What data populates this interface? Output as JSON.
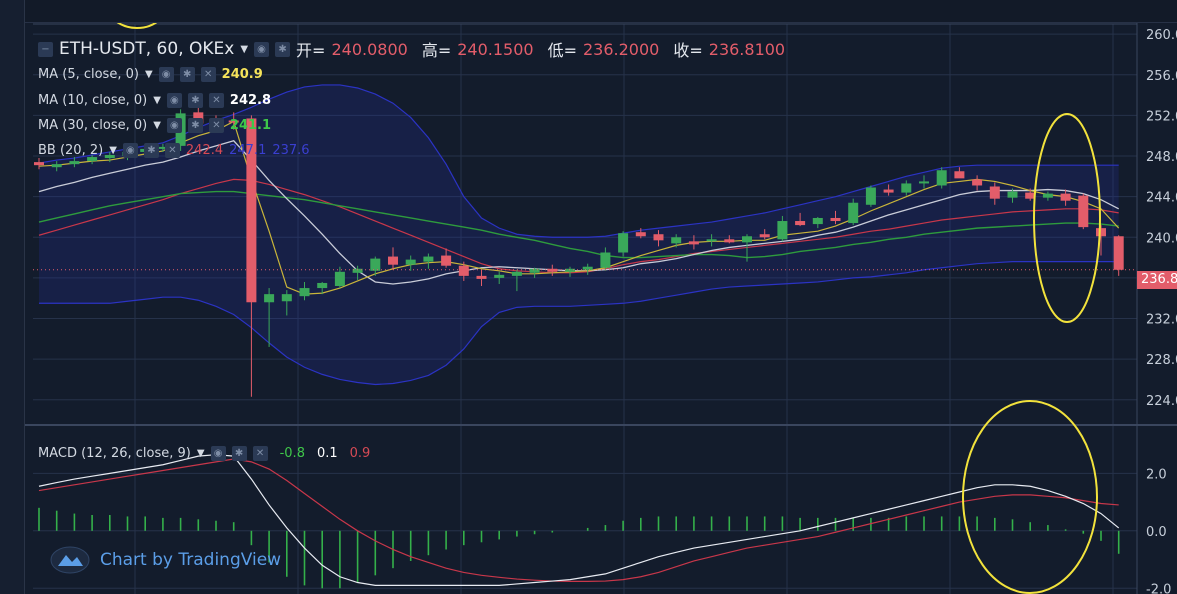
{
  "header": {
    "symbol": "ETH-USDT, 60, OKEx",
    "open_label": "开=",
    "open": "240.0800",
    "high_label": "高=",
    "high": "240.1500",
    "low_label": "低=",
    "low": "236.2000",
    "close_label": "收=",
    "close": "236.8100"
  },
  "indicators": {
    "ma5": {
      "label": "MA (5, close, 0)",
      "value": "240.9",
      "color": "#f5e35a"
    },
    "ma10": {
      "label": "MA (10, close, 0)",
      "value": "242.8",
      "color": "#ffffff"
    },
    "ma30": {
      "label": "MA (30, close, 0)",
      "value": "241.1",
      "color": "#3fc74a"
    },
    "bb": {
      "label": "BB (20, 2)",
      "values": [
        "242.4",
        "247.1",
        "237.6"
      ],
      "colors": [
        "#d64a55",
        "#3a3fd0",
        "#3a3fd0"
      ]
    },
    "macd": {
      "label": "MACD (12, 26, close, 9)",
      "values": [
        "-0.8",
        "0.1",
        "0.9"
      ],
      "colors": [
        "#3fc74a",
        "#ffffff",
        "#d64a55"
      ]
    }
  },
  "branding": {
    "text": "Chart by TradingView"
  },
  "colors": {
    "up": "#3aa85a",
    "down": "#e35d6a",
    "background": "#131c2c",
    "grid": "#26324a",
    "annotation": "#f2e23c"
  },
  "chart_data": [
    {
      "type": "candlestick",
      "title": "",
      "y_ticks": [
        260,
        256,
        252,
        248,
        244,
        240,
        236,
        232,
        228,
        224
      ],
      "ylim": [
        222.5,
        261
      ],
      "last_price": 236.8,
      "candles": [
        {
          "o": 247.4,
          "h": 247.8,
          "l": 246.7,
          "c": 247.1
        },
        {
          "o": 246.9,
          "h": 247.5,
          "l": 246.5,
          "c": 247.2
        },
        {
          "o": 247.2,
          "h": 247.9,
          "l": 246.9,
          "c": 247.5
        },
        {
          "o": 247.5,
          "h": 248.1,
          "l": 247.2,
          "c": 247.9
        },
        {
          "o": 247.8,
          "h": 248.4,
          "l": 247.4,
          "c": 248.1
        },
        {
          "o": 248.0,
          "h": 248.6,
          "l": 247.6,
          "c": 248.4
        },
        {
          "o": 248.4,
          "h": 249.0,
          "l": 248.1,
          "c": 248.7
        },
        {
          "o": 248.7,
          "h": 249.2,
          "l": 248.4,
          "c": 248.9
        },
        {
          "o": 249.0,
          "h": 252.6,
          "l": 248.5,
          "c": 252.2
        },
        {
          "o": 252.3,
          "h": 252.8,
          "l": 250.8,
          "c": 251.2
        },
        {
          "o": 251.4,
          "h": 252.0,
          "l": 250.6,
          "c": 251.0
        },
        {
          "o": 251.5,
          "h": 252.3,
          "l": 250.6,
          "c": 251.3
        },
        {
          "o": 251.7,
          "h": 252.0,
          "l": 224.3,
          "c": 233.6
        },
        {
          "o": 233.6,
          "h": 235.0,
          "l": 229.2,
          "c": 234.4
        },
        {
          "o": 233.7,
          "h": 234.8,
          "l": 232.3,
          "c": 234.4
        },
        {
          "o": 234.2,
          "h": 235.6,
          "l": 233.8,
          "c": 235.0
        },
        {
          "o": 235.0,
          "h": 235.6,
          "l": 234.4,
          "c": 235.5
        },
        {
          "o": 235.2,
          "h": 237.1,
          "l": 235.0,
          "c": 236.6
        },
        {
          "o": 236.5,
          "h": 237.2,
          "l": 235.8,
          "c": 236.9
        },
        {
          "o": 236.7,
          "h": 238.1,
          "l": 236.2,
          "c": 237.9
        },
        {
          "o": 238.1,
          "h": 239.0,
          "l": 236.8,
          "c": 237.3
        },
        {
          "o": 237.3,
          "h": 238.2,
          "l": 236.7,
          "c": 237.8
        },
        {
          "o": 237.6,
          "h": 238.4,
          "l": 236.9,
          "c": 238.1
        },
        {
          "o": 238.2,
          "h": 238.9,
          "l": 237.0,
          "c": 237.2
        },
        {
          "o": 237.2,
          "h": 237.6,
          "l": 235.7,
          "c": 236.2
        },
        {
          "o": 236.2,
          "h": 236.8,
          "l": 235.2,
          "c": 235.9
        },
        {
          "o": 236.0,
          "h": 236.6,
          "l": 235.4,
          "c": 236.3
        },
        {
          "o": 236.2,
          "h": 236.8,
          "l": 234.7,
          "c": 236.6
        },
        {
          "o": 236.5,
          "h": 237.0,
          "l": 236.0,
          "c": 236.9
        },
        {
          "o": 236.9,
          "h": 237.3,
          "l": 236.2,
          "c": 236.6
        },
        {
          "o": 236.6,
          "h": 237.1,
          "l": 236.1,
          "c": 236.9
        },
        {
          "o": 236.8,
          "h": 237.4,
          "l": 236.3,
          "c": 237.1
        },
        {
          "o": 237.0,
          "h": 239.0,
          "l": 236.7,
          "c": 238.5
        },
        {
          "o": 238.5,
          "h": 240.6,
          "l": 238.1,
          "c": 240.4
        },
        {
          "o": 240.5,
          "h": 240.9,
          "l": 239.9,
          "c": 240.1
        },
        {
          "o": 240.3,
          "h": 240.7,
          "l": 239.1,
          "c": 239.7
        },
        {
          "o": 239.4,
          "h": 240.3,
          "l": 239.0,
          "c": 240.0
        },
        {
          "o": 239.6,
          "h": 240.2,
          "l": 238.8,
          "c": 239.3
        },
        {
          "o": 239.6,
          "h": 240.3,
          "l": 239.1,
          "c": 239.8
        },
        {
          "o": 239.8,
          "h": 240.2,
          "l": 239.4,
          "c": 239.5
        },
        {
          "o": 239.5,
          "h": 240.3,
          "l": 237.6,
          "c": 240.1
        },
        {
          "o": 240.3,
          "h": 240.8,
          "l": 239.8,
          "c": 240.0
        },
        {
          "o": 239.8,
          "h": 242.1,
          "l": 239.6,
          "c": 241.6
        },
        {
          "o": 241.6,
          "h": 242.4,
          "l": 241.1,
          "c": 241.2
        },
        {
          "o": 241.3,
          "h": 242.0,
          "l": 240.9,
          "c": 241.9
        },
        {
          "o": 241.9,
          "h": 242.6,
          "l": 241.3,
          "c": 241.6
        },
        {
          "o": 241.4,
          "h": 243.8,
          "l": 241.2,
          "c": 243.4
        },
        {
          "o": 243.2,
          "h": 245.1,
          "l": 243.0,
          "c": 244.9
        },
        {
          "o": 244.7,
          "h": 245.2,
          "l": 244.1,
          "c": 244.4
        },
        {
          "o": 244.4,
          "h": 245.6,
          "l": 244.1,
          "c": 245.3
        },
        {
          "o": 245.3,
          "h": 246.1,
          "l": 244.8,
          "c": 245.5
        },
        {
          "o": 245.1,
          "h": 246.9,
          "l": 244.8,
          "c": 246.6
        },
        {
          "o": 246.5,
          "h": 246.9,
          "l": 245.9,
          "c": 245.8
        },
        {
          "o": 245.7,
          "h": 246.1,
          "l": 244.6,
          "c": 245.1
        },
        {
          "o": 245.0,
          "h": 245.4,
          "l": 243.2,
          "c": 243.8
        },
        {
          "o": 243.9,
          "h": 244.8,
          "l": 243.4,
          "c": 244.5
        },
        {
          "o": 244.4,
          "h": 244.8,
          "l": 243.6,
          "c": 243.8
        },
        {
          "o": 243.9,
          "h": 244.5,
          "l": 243.6,
          "c": 244.3
        },
        {
          "o": 244.3,
          "h": 244.7,
          "l": 243.1,
          "c": 243.6
        },
        {
          "o": 244.1,
          "h": 244.3,
          "l": 240.8,
          "c": 241.0
        },
        {
          "o": 240.9,
          "h": 241.2,
          "l": 238.2,
          "c": 240.1
        },
        {
          "o": 240.1,
          "h": 240.2,
          "l": 236.2,
          "c": 236.8
        }
      ],
      "ma5": [
        247.0,
        247.1,
        247.3,
        247.5,
        247.6,
        247.9,
        248.2,
        248.5,
        249.3,
        250.0,
        250.5,
        251.4,
        245.7,
        240.6,
        235.1,
        234.4,
        234.5,
        235.0,
        235.7,
        236.4,
        236.9,
        237.3,
        237.5,
        237.6,
        237.3,
        236.9,
        236.7,
        236.4,
        236.4,
        236.5,
        236.6,
        236.7,
        237.0,
        237.6,
        238.2,
        238.7,
        239.2,
        239.5,
        239.6,
        239.6,
        239.7,
        239.7,
        240.2,
        240.4,
        240.6,
        241.1,
        241.8,
        242.6,
        243.3,
        244.0,
        244.7,
        245.3,
        245.5,
        245.7,
        245.5,
        245.1,
        244.6,
        244.2,
        244.0,
        243.5,
        242.8,
        240.9
      ],
      "ma10": [
        244.5,
        245.0,
        245.4,
        245.9,
        246.3,
        246.7,
        247.1,
        247.4,
        247.9,
        248.5,
        249.0,
        249.5,
        247.6,
        245.6,
        243.8,
        242.1,
        240.3,
        238.4,
        236.7,
        235.6,
        235.4,
        235.6,
        235.9,
        236.4,
        236.7,
        237.0,
        237.1,
        237.0,
        236.9,
        236.8,
        236.7,
        236.7,
        236.8,
        237.0,
        237.4,
        237.6,
        237.9,
        238.3,
        238.7,
        239.0,
        239.2,
        239.4,
        239.6,
        239.8,
        240.2,
        240.5,
        241.0,
        241.6,
        242.2,
        242.7,
        243.2,
        243.7,
        244.2,
        244.5,
        244.6,
        244.6,
        244.6,
        244.7,
        244.6,
        244.3,
        243.7,
        242.8
      ],
      "ma30": [
        241.5,
        241.9,
        242.3,
        242.7,
        243.1,
        243.4,
        243.7,
        244.0,
        244.3,
        244.4,
        244.5,
        244.5,
        244.3,
        244.1,
        243.9,
        243.7,
        243.4,
        243.1,
        242.8,
        242.5,
        242.2,
        241.9,
        241.6,
        241.3,
        241.0,
        240.7,
        240.3,
        240.0,
        239.7,
        239.3,
        238.9,
        238.6,
        238.2,
        238.0,
        238.0,
        238.1,
        238.2,
        238.3,
        238.3,
        238.2,
        238.0,
        238.1,
        238.3,
        238.6,
        238.8,
        239.0,
        239.3,
        239.5,
        239.8,
        240.0,
        240.3,
        240.5,
        240.7,
        240.9,
        241.0,
        241.1,
        241.2,
        241.3,
        241.4,
        241.4,
        241.3,
        241.1
      ],
      "bb_mid": [
        240.2,
        240.7,
        241.2,
        241.7,
        242.2,
        242.7,
        243.2,
        243.7,
        244.3,
        244.8,
        245.3,
        245.7,
        245.6,
        245.2,
        244.7,
        244.2,
        243.6,
        243.0,
        242.3,
        241.6,
        240.9,
        240.2,
        239.5,
        238.8,
        238.1,
        237.4,
        236.9,
        236.7,
        236.6,
        236.5,
        236.5,
        236.6,
        236.9,
        237.3,
        237.6,
        237.8,
        238.1,
        238.4,
        238.6,
        238.8,
        239.0,
        239.2,
        239.4,
        239.6,
        239.8,
        240.0,
        240.3,
        240.6,
        240.8,
        241.1,
        241.4,
        241.7,
        241.9,
        242.1,
        242.3,
        242.5,
        242.6,
        242.7,
        242.8,
        242.8,
        242.7,
        242.4
      ],
      "bb_upper": [
        247.3,
        247.6,
        247.8,
        248.1,
        248.4,
        248.7,
        249.0,
        249.3,
        250.0,
        250.8,
        251.5,
        252.1,
        252.8,
        253.6,
        254.3,
        254.8,
        255.0,
        255.0,
        254.7,
        254.1,
        253.2,
        251.8,
        249.8,
        247.2,
        244.0,
        241.9,
        240.9,
        240.3,
        240.1,
        240.0,
        240.0,
        240.0,
        240.1,
        240.4,
        240.7,
        240.9,
        241.1,
        241.3,
        241.5,
        241.8,
        242.1,
        242.4,
        242.8,
        243.2,
        243.6,
        244.0,
        244.5,
        245.0,
        245.5,
        246.0,
        246.4,
        246.8,
        247.0,
        247.1,
        247.1,
        247.1,
        247.1,
        247.1,
        247.1,
        247.1,
        247.1,
        247.1
      ],
      "bb_lower": [
        233.5,
        233.5,
        233.5,
        233.5,
        233.5,
        233.7,
        233.9,
        234.1,
        234.1,
        233.8,
        233.2,
        232.4,
        231.1,
        229.6,
        228.2,
        227.2,
        226.5,
        226.0,
        225.7,
        225.5,
        225.6,
        225.9,
        226.4,
        227.4,
        229.0,
        231.2,
        232.6,
        233.1,
        233.2,
        233.2,
        233.2,
        233.3,
        233.4,
        233.5,
        233.7,
        234.0,
        234.3,
        234.6,
        234.9,
        235.1,
        235.2,
        235.3,
        235.4,
        235.5,
        235.6,
        235.8,
        236.0,
        236.1,
        236.3,
        236.5,
        236.8,
        237.0,
        237.2,
        237.4,
        237.5,
        237.6,
        237.6,
        237.6,
        237.6,
        237.6,
        237.6,
        237.6
      ]
    },
    {
      "type": "macd",
      "title": "",
      "y_ticks": [
        2.0,
        0.0,
        -2.0
      ],
      "ylim": [
        -2.2,
        3.3
      ],
      "macd": [
        1.55,
        1.68,
        1.8,
        1.9,
        2.0,
        2.1,
        2.2,
        2.3,
        2.45,
        2.6,
        2.65,
        2.6,
        1.8,
        0.9,
        0.1,
        -0.6,
        -1.2,
        -1.6,
        -1.8,
        -1.9,
        -1.9,
        -1.9,
        -1.9,
        -1.9,
        -1.9,
        -1.9,
        -1.9,
        -1.85,
        -1.8,
        -1.75,
        -1.7,
        -1.6,
        -1.5,
        -1.3,
        -1.1,
        -0.9,
        -0.75,
        -0.6,
        -0.5,
        -0.4,
        -0.3,
        -0.2,
        -0.1,
        0.0,
        0.15,
        0.3,
        0.45,
        0.6,
        0.75,
        0.9,
        1.05,
        1.2,
        1.35,
        1.5,
        1.6,
        1.6,
        1.55,
        1.4,
        1.2,
        0.95,
        0.6,
        0.1
      ],
      "signal": [
        1.4,
        1.5,
        1.6,
        1.7,
        1.8,
        1.9,
        2.0,
        2.1,
        2.2,
        2.3,
        2.4,
        2.5,
        2.4,
        2.15,
        1.75,
        1.3,
        0.85,
        0.4,
        0.0,
        -0.35,
        -0.65,
        -0.9,
        -1.1,
        -1.3,
        -1.45,
        -1.55,
        -1.62,
        -1.68,
        -1.72,
        -1.75,
        -1.76,
        -1.76,
        -1.75,
        -1.7,
        -1.6,
        -1.45,
        -1.25,
        -1.05,
        -0.9,
        -0.75,
        -0.6,
        -0.5,
        -0.4,
        -0.3,
        -0.2,
        -0.05,
        0.1,
        0.25,
        0.4,
        0.55,
        0.7,
        0.85,
        1.0,
        1.1,
        1.2,
        1.25,
        1.25,
        1.2,
        1.15,
        1.05,
        0.95,
        0.9
      ],
      "histogram": [
        0.8,
        0.7,
        0.6,
        0.55,
        0.55,
        0.5,
        0.5,
        0.45,
        0.45,
        0.4,
        0.35,
        0.3,
        -0.5,
        -1.1,
        -1.6,
        -1.9,
        -2.0,
        -2.0,
        -1.8,
        -1.55,
        -1.3,
        -1.05,
        -0.85,
        -0.65,
        -0.5,
        -0.4,
        -0.3,
        -0.2,
        -0.12,
        -0.06,
        0.0,
        0.1,
        0.2,
        0.35,
        0.45,
        0.5,
        0.5,
        0.5,
        0.5,
        0.5,
        0.5,
        0.5,
        0.5,
        0.45,
        0.45,
        0.45,
        0.45,
        0.45,
        0.45,
        0.5,
        0.5,
        0.5,
        0.5,
        0.5,
        0.45,
        0.4,
        0.3,
        0.2,
        0.05,
        -0.1,
        -0.35,
        -0.8
      ]
    }
  ]
}
